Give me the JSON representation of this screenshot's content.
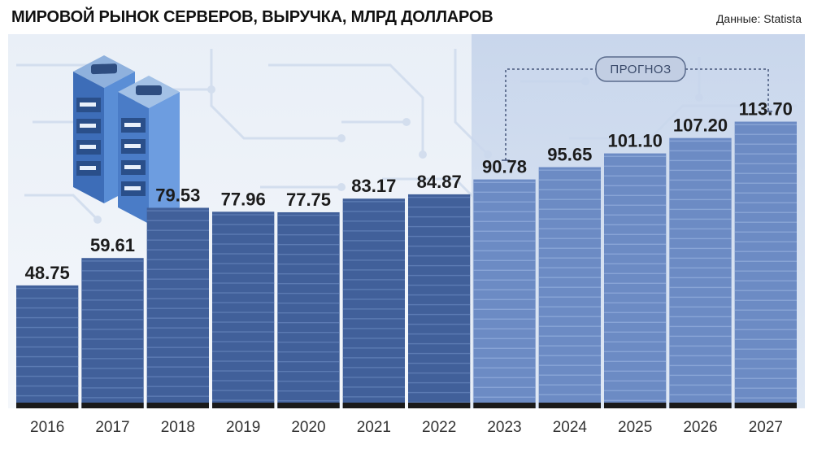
{
  "header": {
    "title": "МИРОВОЙ РЫНОК СЕРВЕРОВ, ВЫРУЧКА, МЛРД ДОЛЛАРОВ",
    "source": "Данные: Statista"
  },
  "chart_data": {
    "type": "bar",
    "title": "МИРОВОЙ РЫНОК СЕРВЕРОВ, ВЫРУЧКА, МЛРД ДОЛЛАРОВ",
    "xlabel": "",
    "ylabel": "",
    "categories": [
      "2016",
      "2017",
      "2018",
      "2019",
      "2020",
      "2021",
      "2022",
      "2023",
      "2024",
      "2025",
      "2026",
      "2027"
    ],
    "values": [
      48.75,
      59.61,
      79.53,
      77.96,
      77.75,
      83.17,
      84.87,
      90.78,
      95.65,
      101.1,
      107.2,
      113.7
    ],
    "value_labels": [
      "48.75",
      "59.61",
      "79.53",
      "77.96",
      "77.75",
      "83.17",
      "84.87",
      "90.78",
      "95.65",
      "101.10",
      "107.20",
      "113.70"
    ],
    "forecast_start_index": 7,
    "forecast_label": "ПРОГНОЗ",
    "ylim": [
      0,
      140
    ],
    "grid": false,
    "legend": "none",
    "colors": {
      "actual_bar": "#41609a",
      "actual_stripe": "#5c7bb3",
      "forecast_bar": "#6c8bc4",
      "forecast_stripe": "#89a5d6",
      "bar_base": "#1a1a1a",
      "background_circuit": "#dde6f2",
      "forecast_panel": "#c9d7ec"
    }
  }
}
